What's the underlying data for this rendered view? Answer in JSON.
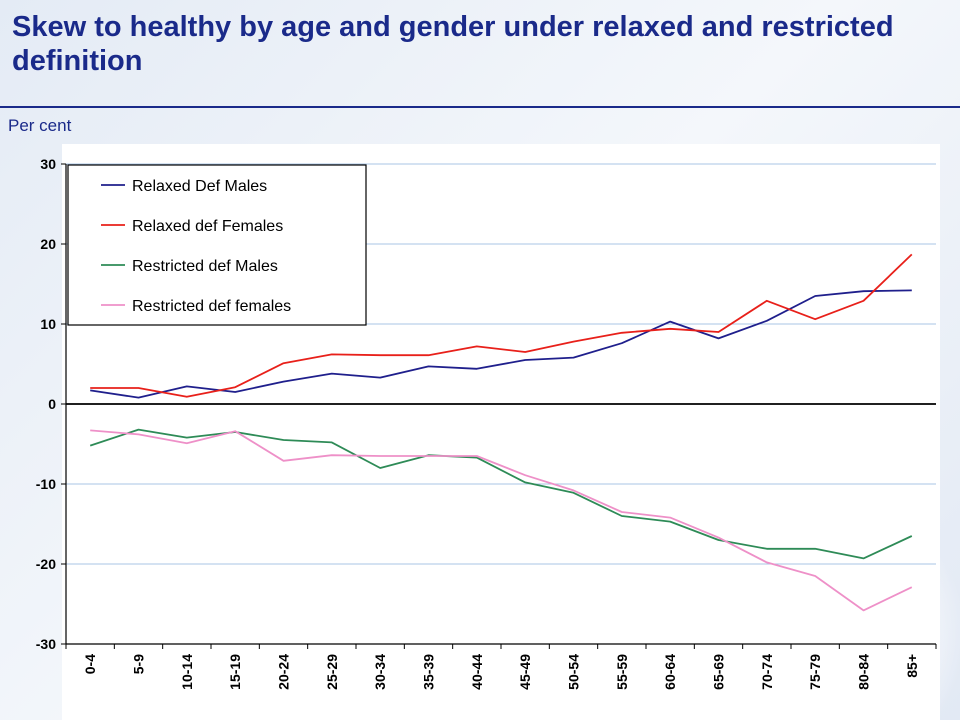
{
  "title": "Skew to healthy by age and gender under relaxed and restricted definition",
  "unit_label": "Per cent",
  "chart_data": {
    "type": "line",
    "title": "Skew to healthy by age and gender under relaxed and restricted definition",
    "ylabel": "Per cent",
    "xlabel": "",
    "ylim": [
      -30,
      30
    ],
    "yticks": [
      30,
      20,
      10,
      0,
      -10,
      -20,
      -30
    ],
    "grid": true,
    "legend_position": "top-left",
    "categories": [
      "0-4",
      "5-9",
      "10-14",
      "15-19",
      "20-24",
      "25-29",
      "30-34",
      "35-39",
      "40-44",
      "45-49",
      "50-54",
      "55-59",
      "60-64",
      "65-69",
      "70-74",
      "75-79",
      "80-84",
      "85+"
    ],
    "series": [
      {
        "name": "Relaxed Def Males",
        "color": "#1f1f8c",
        "values": [
          1.7,
          0.8,
          2.2,
          1.5,
          2.8,
          3.8,
          3.3,
          4.7,
          4.4,
          5.5,
          5.8,
          7.6,
          10.3,
          8.2,
          10.4,
          13.5,
          14.1,
          14.2
        ]
      },
      {
        "name": "Relaxed def Females",
        "color": "#e8201a",
        "values": [
          2.0,
          2.0,
          0.9,
          2.1,
          5.1,
          6.2,
          6.1,
          6.1,
          7.2,
          6.5,
          7.8,
          8.9,
          9.4,
          9.0,
          12.9,
          10.6,
          12.9,
          18.7
        ]
      },
      {
        "name": "Restricted def Males",
        "color": "#2e8b57",
        "values": [
          -5.2,
          -3.2,
          -4.2,
          -3.5,
          -4.5,
          -4.8,
          -8.0,
          -6.4,
          -6.7,
          -9.8,
          -11.1,
          -14.0,
          -14.7,
          -17.0,
          -18.1,
          -18.1,
          -19.3,
          -16.5
        ]
      },
      {
        "name": "Restricted def females",
        "color": "#ee90c8",
        "values": [
          -3.3,
          -3.8,
          -4.9,
          -3.4,
          -7.1,
          -6.4,
          -6.5,
          -6.5,
          -6.5,
          -8.9,
          -10.8,
          -13.5,
          -14.2,
          -16.7,
          -19.8,
          -21.5,
          -25.8,
          -22.9
        ]
      }
    ]
  }
}
